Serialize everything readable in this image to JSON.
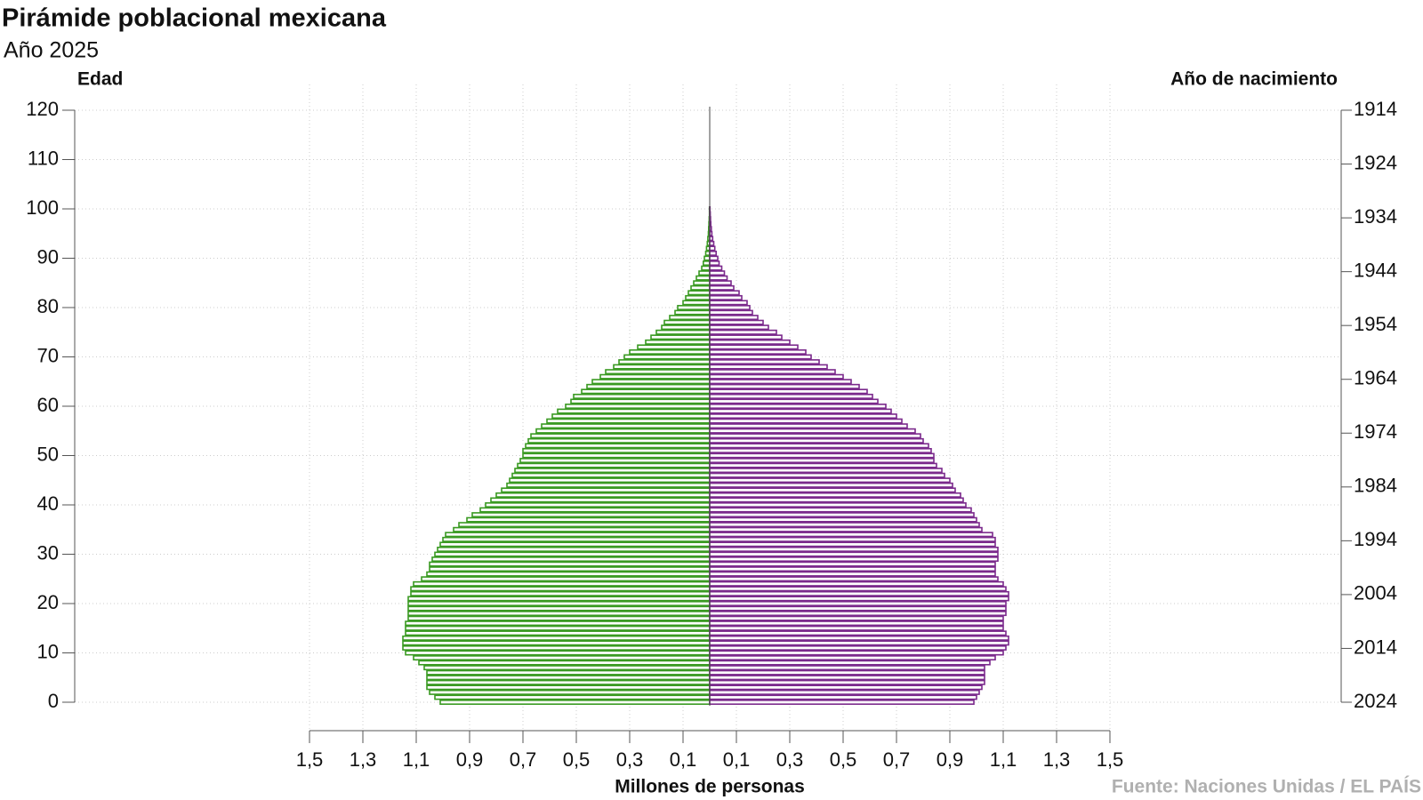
{
  "chart_data": {
    "type": "pyramid",
    "title": "Pirámide poblacional mexicana",
    "subtitle": "Año 2025",
    "y_label": "Edad",
    "y2_label": "Año de nacimiento",
    "x_label": "Millones de personas",
    "source": "Fuente: Naciones Unidas / EL PAÍS",
    "y": [
      0,
      1,
      2,
      3,
      4,
      5,
      6,
      7,
      8,
      9,
      10,
      11,
      12,
      13,
      14,
      15,
      16,
      17,
      18,
      19,
      20,
      21,
      22,
      23,
      24,
      25,
      26,
      27,
      28,
      29,
      30,
      31,
      32,
      33,
      34,
      35,
      36,
      37,
      38,
      39,
      40,
      41,
      42,
      43,
      44,
      45,
      46,
      47,
      48,
      49,
      50,
      51,
      52,
      53,
      54,
      55,
      56,
      57,
      58,
      59,
      60,
      61,
      62,
      63,
      64,
      65,
      66,
      67,
      68,
      69,
      70,
      71,
      72,
      73,
      74,
      75,
      76,
      77,
      78,
      79,
      80,
      81,
      82,
      83,
      84,
      85,
      86,
      87,
      88,
      89,
      90,
      91,
      92,
      93,
      94,
      95,
      96,
      97,
      98,
      99,
      100
    ],
    "series": [
      {
        "side": "left",
        "color": "#3a9a22",
        "values": [
          1.01,
          1.03,
          1.05,
          1.06,
          1.06,
          1.06,
          1.06,
          1.07,
          1.09,
          1.11,
          1.14,
          1.15,
          1.15,
          1.15,
          1.14,
          1.14,
          1.14,
          1.13,
          1.13,
          1.13,
          1.13,
          1.13,
          1.12,
          1.12,
          1.11,
          1.08,
          1.06,
          1.05,
          1.05,
          1.04,
          1.03,
          1.02,
          1.01,
          1.0,
          0.99,
          0.96,
          0.94,
          0.91,
          0.89,
          0.86,
          0.84,
          0.82,
          0.8,
          0.78,
          0.76,
          0.75,
          0.74,
          0.73,
          0.72,
          0.71,
          0.7,
          0.7,
          0.69,
          0.68,
          0.67,
          0.65,
          0.63,
          0.61,
          0.59,
          0.57,
          0.54,
          0.52,
          0.51,
          0.48,
          0.46,
          0.44,
          0.41,
          0.39,
          0.36,
          0.34,
          0.32,
          0.3,
          0.27,
          0.24,
          0.22,
          0.2,
          0.18,
          0.17,
          0.15,
          0.13,
          0.12,
          0.1,
          0.09,
          0.08,
          0.07,
          0.06,
          0.05,
          0.04,
          0.03,
          0.024,
          0.02,
          0.015,
          0.012,
          0.009,
          0.007,
          0.005,
          0.004,
          0.003,
          0.002,
          0.001,
          0.001
        ]
      },
      {
        "side": "right",
        "color": "#7b2a8c",
        "values": [
          0.99,
          1.0,
          1.01,
          1.02,
          1.03,
          1.03,
          1.03,
          1.03,
          1.05,
          1.07,
          1.1,
          1.11,
          1.12,
          1.12,
          1.11,
          1.1,
          1.1,
          1.1,
          1.11,
          1.11,
          1.11,
          1.12,
          1.12,
          1.11,
          1.1,
          1.08,
          1.07,
          1.07,
          1.07,
          1.08,
          1.08,
          1.08,
          1.07,
          1.07,
          1.06,
          1.02,
          1.01,
          1.0,
          0.99,
          0.98,
          0.96,
          0.95,
          0.94,
          0.92,
          0.91,
          0.9,
          0.88,
          0.87,
          0.85,
          0.84,
          0.84,
          0.83,
          0.82,
          0.8,
          0.79,
          0.77,
          0.74,
          0.72,
          0.7,
          0.68,
          0.66,
          0.63,
          0.61,
          0.59,
          0.56,
          0.53,
          0.5,
          0.47,
          0.44,
          0.41,
          0.38,
          0.36,
          0.33,
          0.3,
          0.27,
          0.25,
          0.22,
          0.2,
          0.18,
          0.16,
          0.15,
          0.14,
          0.12,
          0.11,
          0.09,
          0.08,
          0.065,
          0.055,
          0.045,
          0.035,
          0.03,
          0.024,
          0.019,
          0.015,
          0.011,
          0.008,
          0.006,
          0.004,
          0.003,
          0.002,
          0.001
        ]
      }
    ],
    "xlim": [
      -1.5,
      1.5
    ],
    "xticks": [
      {
        "value": -1.5,
        "label": "1,5"
      },
      {
        "value": -1.3,
        "label": "1,3"
      },
      {
        "value": -1.1,
        "label": "1,1"
      },
      {
        "value": -0.9,
        "label": "0,9"
      },
      {
        "value": -0.7,
        "label": "0,7"
      },
      {
        "value": -0.5,
        "label": "0,5"
      },
      {
        "value": -0.3,
        "label": "0,3"
      },
      {
        "value": -0.1,
        "label": "0,1"
      },
      {
        "value": 0.1,
        "label": "0,1"
      },
      {
        "value": 0.3,
        "label": "0,3"
      },
      {
        "value": 0.5,
        "label": "0,5"
      },
      {
        "value": 0.7,
        "label": "0,7"
      },
      {
        "value": 0.9,
        "label": "0,9"
      },
      {
        "value": 1.1,
        "label": "1,1"
      },
      {
        "value": 1.3,
        "label": "1,3"
      },
      {
        "value": 1.5,
        "label": "1,5"
      }
    ],
    "ylim": [
      0,
      120
    ],
    "yticks": [
      0,
      10,
      20,
      30,
      40,
      50,
      60,
      70,
      80,
      90,
      100,
      110,
      120
    ],
    "y2lim": [
      2024,
      1914
    ],
    "y2ticks": [
      1914,
      1924,
      1934,
      1944,
      1954,
      1964,
      1974,
      1984,
      1994,
      2004,
      2014,
      2024
    ],
    "grid": true
  }
}
